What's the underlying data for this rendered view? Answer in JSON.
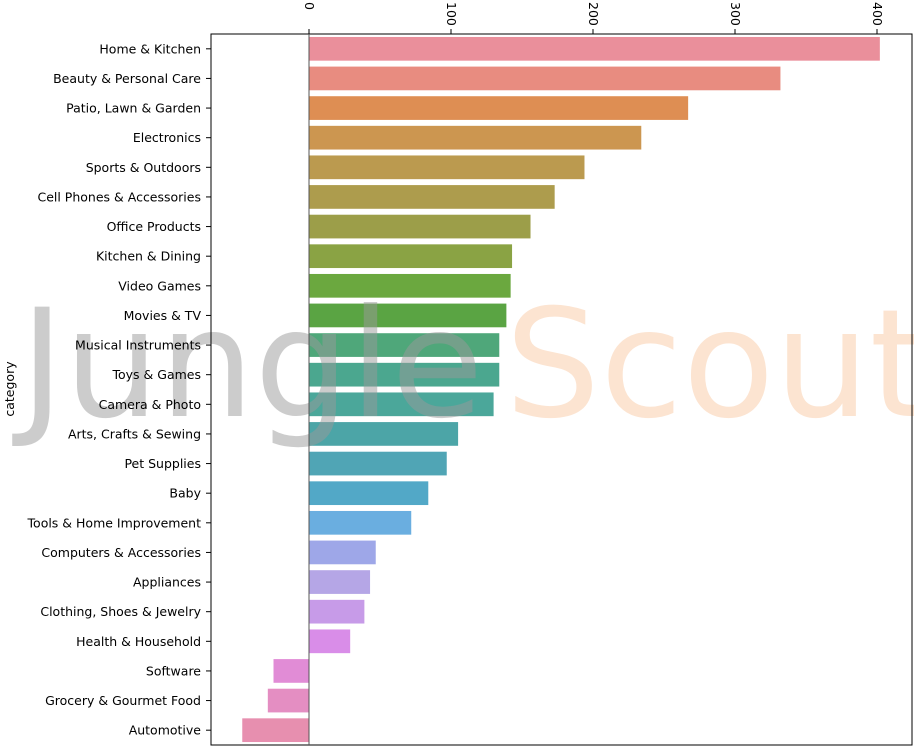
{
  "chart_data": {
    "type": "bar",
    "orientation": "horizontal",
    "ylabel": "category",
    "xlabel": "",
    "xlim": [
      -70,
      410
    ],
    "x_ticks": [
      0,
      100,
      200,
      300,
      400
    ],
    "x_tick_labels": [
      "0",
      "100",
      "200",
      "300",
      "400"
    ],
    "x_tick_position": "top",
    "x_tick_rotation": "vertical",
    "grid": false,
    "categories": [
      "Home & Kitchen",
      "Beauty & Personal Care",
      "Patio, Lawn & Garden",
      "Electronics",
      "Sports & Outdoors",
      "Cell Phones & Accessories",
      "Office Products",
      "Kitchen & Dining",
      "Video Games",
      "Movies & TV",
      "Musical Instruments",
      "Toys & Games",
      "Camera & Photo",
      "Arts, Crafts & Sewing",
      "Pet Supplies",
      "Baby",
      "Tools & Home Improvement",
      "Computers & Accessories",
      "Appliances",
      "Clothing, Shoes & Jewelry",
      "Health & Household",
      "Software",
      "Grocery & Gourmet Food",
      "Automotive"
    ],
    "values": [
      402,
      332,
      267,
      234,
      194,
      173,
      156,
      143,
      142,
      139,
      134,
      134,
      130,
      105,
      97,
      84,
      72,
      47,
      43,
      39,
      29,
      -25,
      -29,
      -47
    ],
    "colors": [
      "#ea8f9b",
      "#e88c80",
      "#de8e53",
      "#cc9650",
      "#bb9a4f",
      "#ad9c4d",
      "#9c9e49",
      "#8aa344",
      "#6ba83f",
      "#5aa443",
      "#4fa77a",
      "#4ba78f",
      "#4ba79a",
      "#4ca5a7",
      "#50a5b5",
      "#52a8c7",
      "#6aaee0",
      "#9ea7e8",
      "#b5a6e6",
      "#c79be8",
      "#d98de8",
      "#e18cd6",
      "#e48ec2",
      "#e78faf"
    ],
    "watermark": {
      "part1": "Jungle",
      "part2": "Scout"
    }
  }
}
